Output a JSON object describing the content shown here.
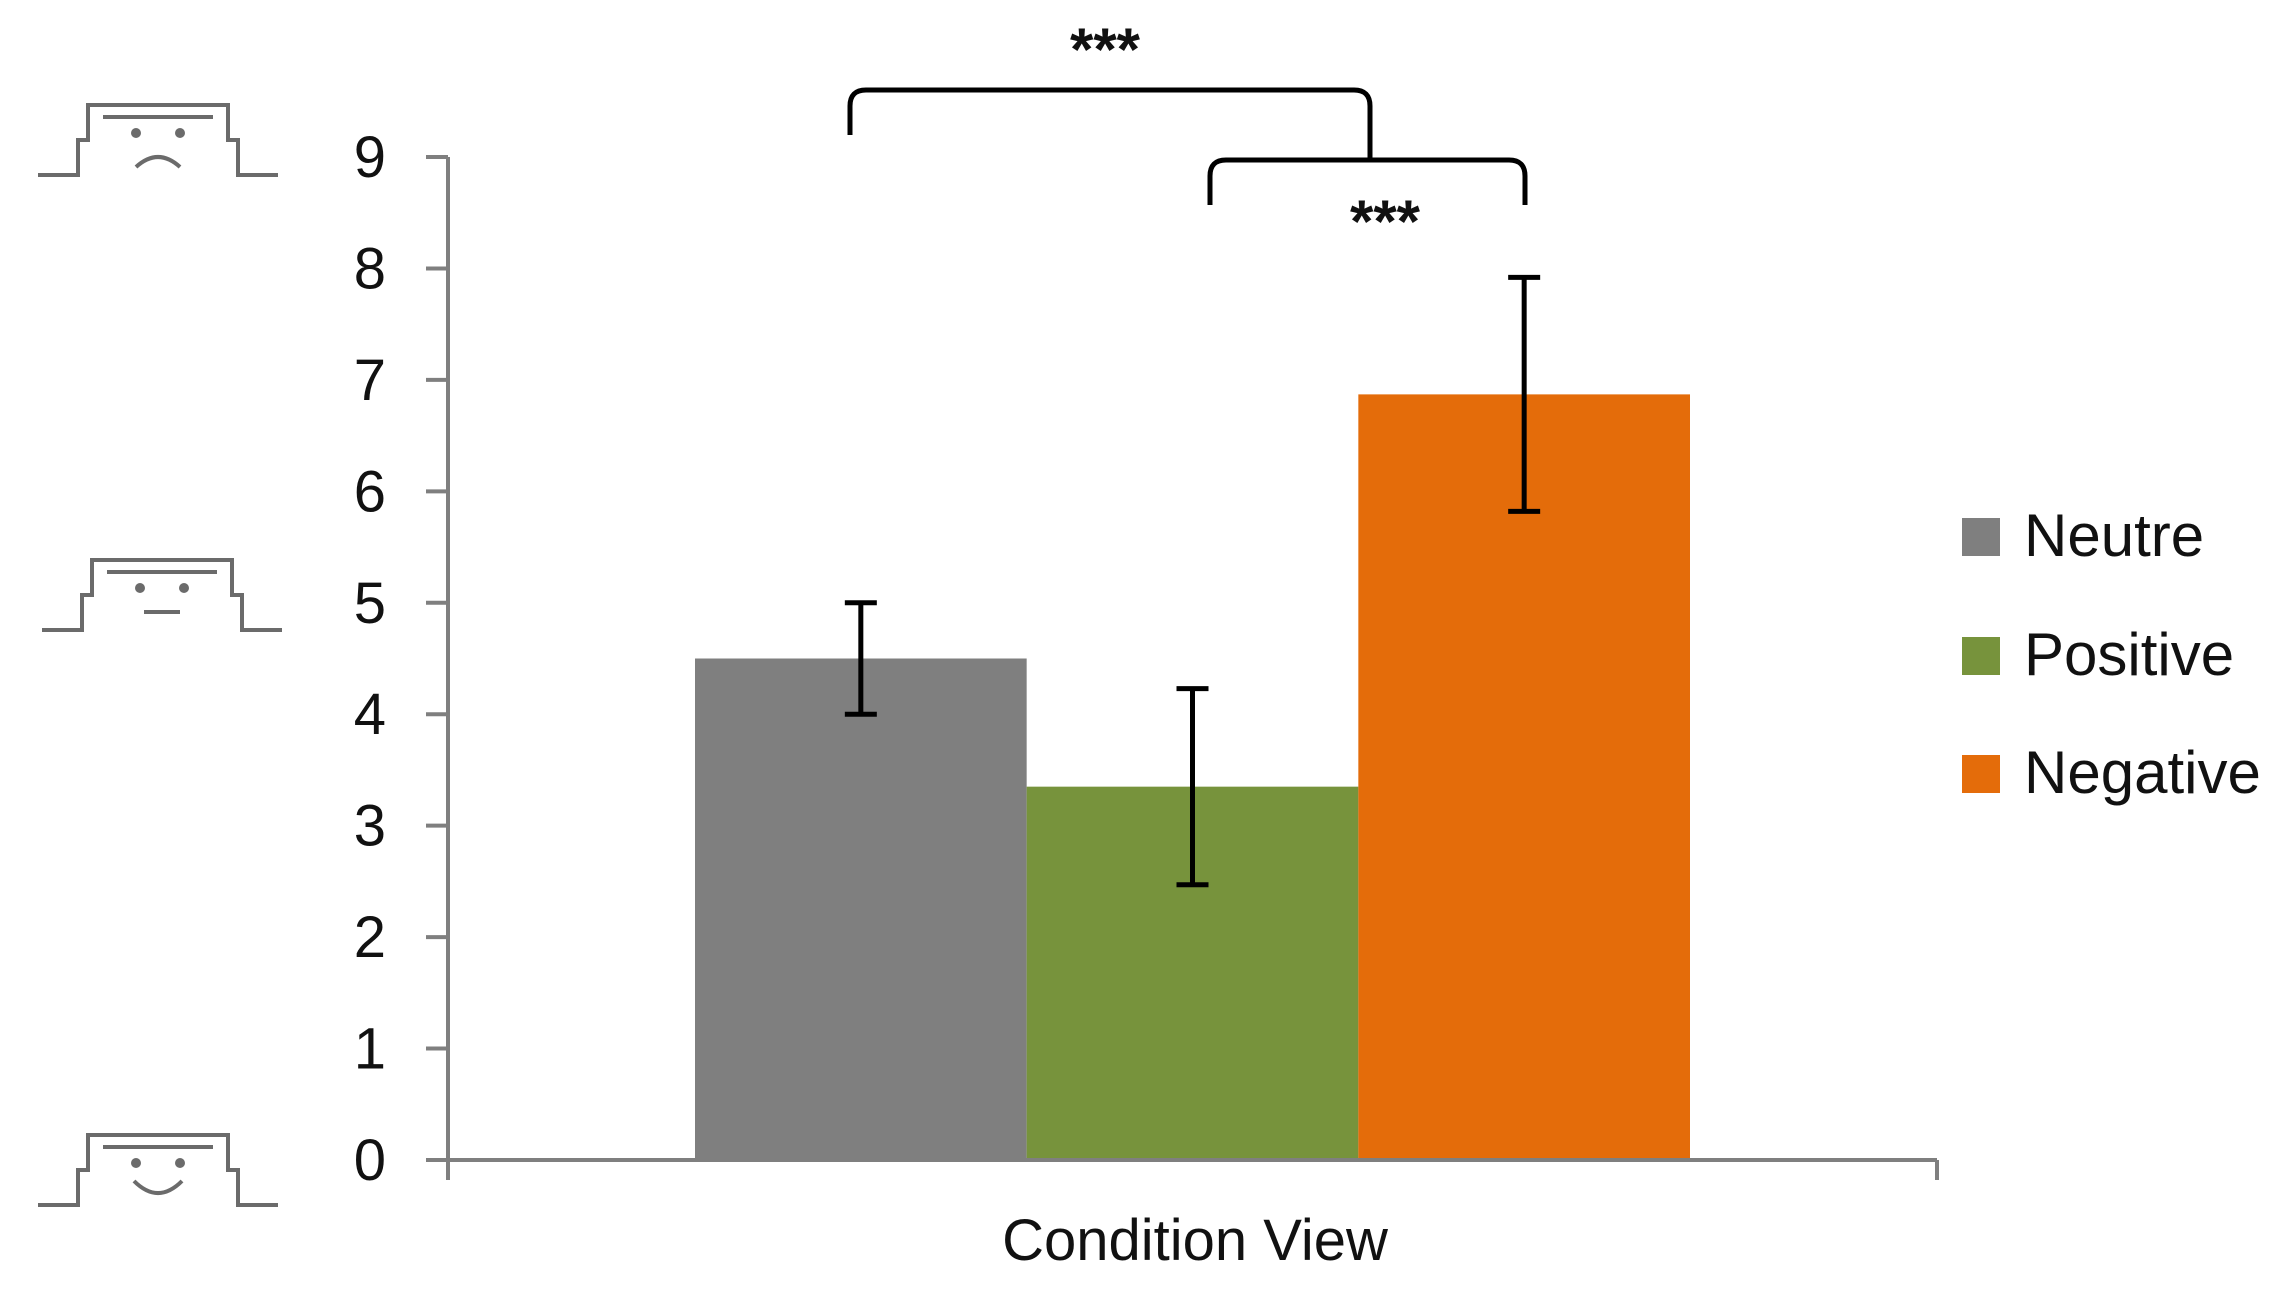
{
  "chart_data": {
    "type": "bar",
    "title": "",
    "xlabel": "Condition View",
    "ylabel": "",
    "ylim": [
      0,
      9
    ],
    "yticks": [
      0,
      1,
      2,
      3,
      4,
      5,
      6,
      7,
      8,
      9
    ],
    "categories": [
      "Condition View"
    ],
    "series": [
      {
        "name": "Neutre",
        "values": [
          4.5
        ],
        "error": [
          0.5
        ],
        "color": "#7f7f7f"
      },
      {
        "name": "Positive",
        "values": [
          3.35
        ],
        "error": [
          0.88
        ],
        "color": "#77933c"
      },
      {
        "name": "Negative",
        "values": [
          6.87
        ],
        "error": [
          1.05
        ],
        "color": "#e46c0a"
      }
    ],
    "legend": {
      "position": "right"
    },
    "grid": false,
    "significance": [
      {
        "between": [
          "Neutre",
          "Negative"
        ],
        "label": "***"
      },
      {
        "between": [
          "Positive",
          "Negative"
        ],
        "label": "***"
      }
    ],
    "scale_icons": [
      {
        "name": "frowning-face-icon",
        "value": 9
      },
      {
        "name": "neutral-face-icon",
        "value": 5
      },
      {
        "name": "smiling-face-icon",
        "value": 0
      }
    ]
  }
}
